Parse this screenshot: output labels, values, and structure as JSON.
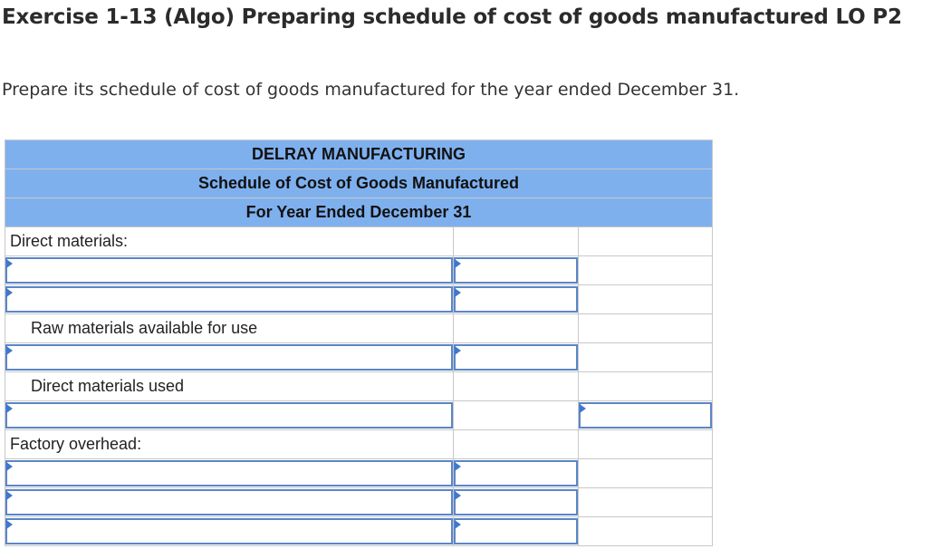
{
  "page": {
    "title": "Exercise 1-13 (Algo) Preparing schedule of cost of goods manufactured LO P2",
    "instructions": "Prepare its schedule of cost of goods manufactured for the year ended December 31."
  },
  "schedule": {
    "company": "DELRAY MANUFACTURING",
    "statement": "Schedule of Cost of Goods Manufactured",
    "period": "For Year Ended December 31",
    "rows": [
      {
        "label": "Direct materials:",
        "col1": "",
        "col2": ""
      },
      {
        "label": "",
        "col1": "",
        "col2": ""
      },
      {
        "label": "",
        "col1": "",
        "col2": ""
      },
      {
        "label": "Raw materials available for use",
        "col1": "",
        "col2": ""
      },
      {
        "label": "",
        "col1": "",
        "col2": ""
      },
      {
        "label": "Direct materials used",
        "col1": "",
        "col2": ""
      },
      {
        "label": "",
        "col1": "",
        "col2": ""
      },
      {
        "label": "Factory overhead:",
        "col1": "",
        "col2": ""
      },
      {
        "label": "",
        "col1": "",
        "col2": ""
      },
      {
        "label": "",
        "col1": "",
        "col2": ""
      },
      {
        "label": "",
        "col1": "",
        "col2": ""
      }
    ]
  },
  "colors": {
    "header_bg": "#7fb0ee",
    "input_border": "#5a86c8",
    "input_marker": "#3d78d0"
  }
}
